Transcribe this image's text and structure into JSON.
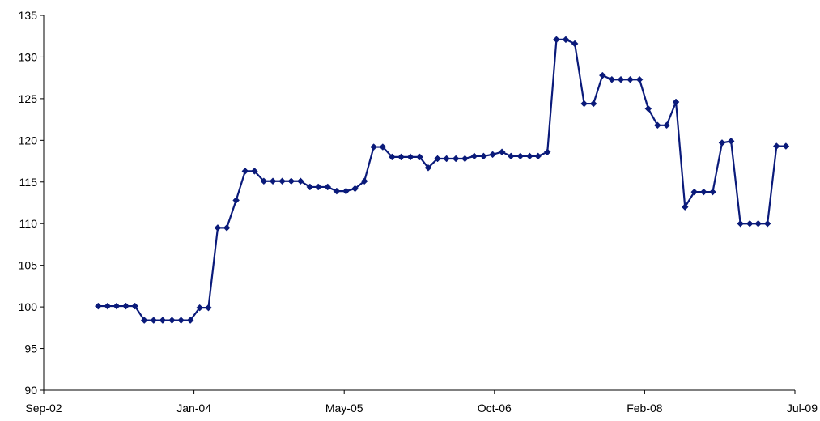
{
  "chart_data": {
    "type": "line",
    "title": "",
    "xlabel": "",
    "ylabel": "",
    "x_ticks": [
      "Sep-02",
      "Jan-04",
      "May-05",
      "Oct-06",
      "Feb-08",
      "Jul-09"
    ],
    "y_ticks": [
      "90",
      "95",
      "100",
      "105",
      "110",
      "115",
      "120",
      "125",
      "130",
      "135"
    ],
    "ylim": [
      90,
      135
    ],
    "xlim": [
      "2002-09-01",
      "2009-07-01"
    ],
    "grid": false,
    "legend": "none",
    "series": [
      {
        "color": "#0a1a7a",
        "marker": "diamond",
        "points": [
          [
            "2003-03-01",
            100.1
          ],
          [
            "2003-04-01",
            100.1
          ],
          [
            "2003-05-01",
            100.1
          ],
          [
            "2003-06-01",
            100.1
          ],
          [
            "2003-07-01",
            100.1
          ],
          [
            "2003-08-01",
            98.4
          ],
          [
            "2003-09-01",
            98.4
          ],
          [
            "2003-10-01",
            98.4
          ],
          [
            "2003-11-01",
            98.4
          ],
          [
            "2003-12-01",
            98.4
          ],
          [
            "2004-01-01",
            98.4
          ],
          [
            "2004-02-01",
            99.9
          ],
          [
            "2004-03-01",
            99.9
          ],
          [
            "2004-04-01",
            109.5
          ],
          [
            "2004-05-01",
            109.5
          ],
          [
            "2004-06-01",
            112.8
          ],
          [
            "2004-07-01",
            116.3
          ],
          [
            "2004-08-01",
            116.3
          ],
          [
            "2004-09-01",
            115.1
          ],
          [
            "2004-10-01",
            115.1
          ],
          [
            "2004-11-01",
            115.1
          ],
          [
            "2004-12-01",
            115.1
          ],
          [
            "2005-01-01",
            115.1
          ],
          [
            "2005-02-01",
            114.4
          ],
          [
            "2005-03-01",
            114.4
          ],
          [
            "2005-04-01",
            114.4
          ],
          [
            "2005-05-01",
            113.9
          ],
          [
            "2005-06-01",
            113.9
          ],
          [
            "2005-07-01",
            114.2
          ],
          [
            "2005-08-01",
            115.1
          ],
          [
            "2005-09-01",
            119.2
          ],
          [
            "2005-10-01",
            119.2
          ],
          [
            "2005-11-01",
            118.0
          ],
          [
            "2005-12-01",
            118.0
          ],
          [
            "2006-01-01",
            118.0
          ],
          [
            "2006-02-01",
            118.0
          ],
          [
            "2006-03-01",
            116.7
          ],
          [
            "2006-04-01",
            117.8
          ],
          [
            "2006-05-01",
            117.8
          ],
          [
            "2006-06-01",
            117.8
          ],
          [
            "2006-07-01",
            117.8
          ],
          [
            "2006-08-01",
            118.1
          ],
          [
            "2006-09-01",
            118.1
          ],
          [
            "2006-10-01",
            118.3
          ],
          [
            "2006-11-01",
            118.6
          ],
          [
            "2006-12-01",
            118.1
          ],
          [
            "2007-01-01",
            118.1
          ],
          [
            "2007-02-01",
            118.1
          ],
          [
            "2007-03-01",
            118.1
          ],
          [
            "2007-04-01",
            118.6
          ],
          [
            "2007-05-01",
            132.1
          ],
          [
            "2007-06-01",
            132.1
          ],
          [
            "2007-07-01",
            131.6
          ],
          [
            "2007-08-01",
            124.4
          ],
          [
            "2007-09-01",
            124.4
          ],
          [
            "2007-10-01",
            127.8
          ],
          [
            "2007-11-01",
            127.3
          ],
          [
            "2007-12-01",
            127.3
          ],
          [
            "2008-01-01",
            127.3
          ],
          [
            "2008-02-01",
            127.3
          ],
          [
            "2008-03-01",
            123.8
          ],
          [
            "2008-04-01",
            121.8
          ],
          [
            "2008-05-01",
            121.8
          ],
          [
            "2008-06-01",
            124.6
          ],
          [
            "2008-07-01",
            112.0
          ],
          [
            "2008-08-01",
            113.8
          ],
          [
            "2008-09-01",
            113.8
          ],
          [
            "2008-10-01",
            113.8
          ],
          [
            "2008-11-01",
            119.7
          ],
          [
            "2008-12-01",
            119.9
          ],
          [
            "2009-01-01",
            110.0
          ],
          [
            "2009-02-01",
            110.0
          ],
          [
            "2009-03-01",
            110.0
          ],
          [
            "2009-04-01",
            110.0
          ],
          [
            "2009-05-01",
            119.3
          ],
          [
            "2009-06-01",
            119.3
          ]
        ]
      }
    ]
  }
}
